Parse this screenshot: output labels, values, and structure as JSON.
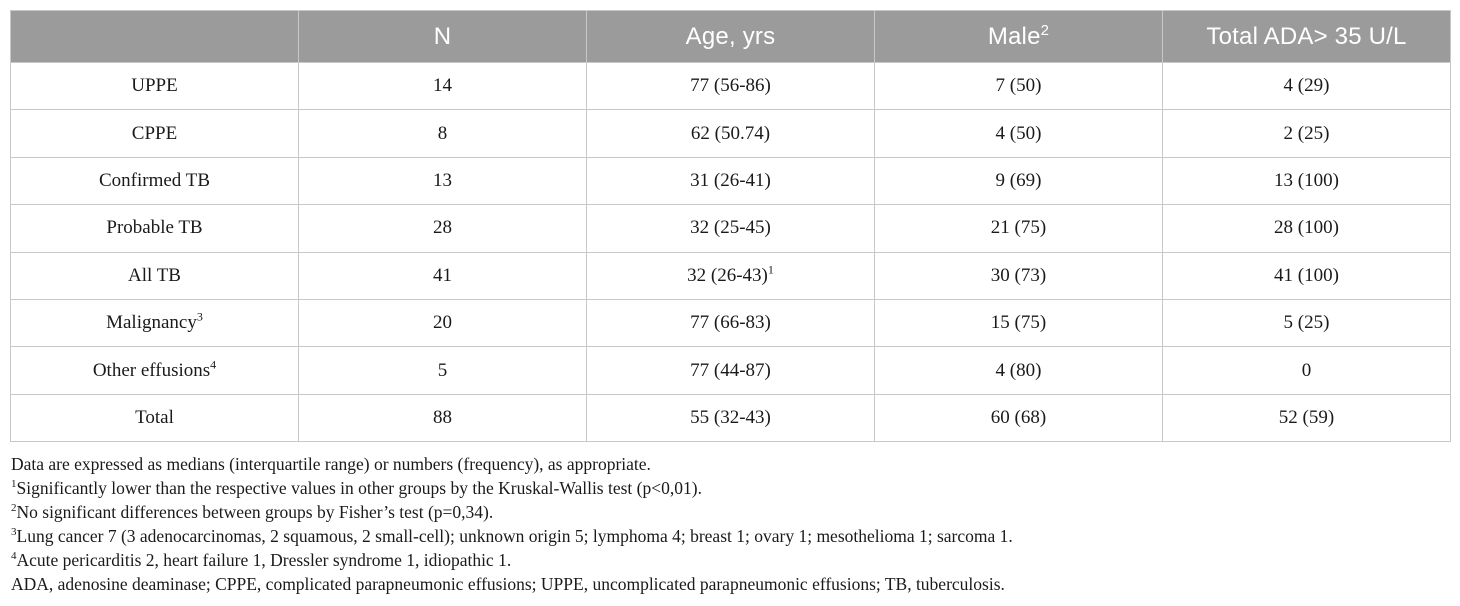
{
  "table": {
    "headers": [
      {
        "text": "",
        "sup": ""
      },
      {
        "text": "N",
        "sup": ""
      },
      {
        "text": "Age, yrs",
        "sup": ""
      },
      {
        "text": "Male",
        "sup": "2"
      },
      {
        "text": "Total ADA> 35 U/L",
        "sup": ""
      }
    ],
    "rows": [
      {
        "group": "UPPE",
        "group_sup": "",
        "n": "14",
        "age": "77 (56-86)",
        "age_sup": "",
        "male": "7 (50)",
        "ada": "4 (29)"
      },
      {
        "group": "CPPE",
        "group_sup": "",
        "n": "8",
        "age": "62 (50.74)",
        "age_sup": "",
        "male": "4 (50)",
        "ada": "2 (25)"
      },
      {
        "group": "Confirmed TB",
        "group_sup": "",
        "n": "13",
        "age": "31 (26-41)",
        "age_sup": "",
        "male": "9 (69)",
        "ada": "13 (100)"
      },
      {
        "group": "Probable TB",
        "group_sup": "",
        "n": "28",
        "age": "32 (25-45)",
        "age_sup": "",
        "male": "21 (75)",
        "ada": "28 (100)"
      },
      {
        "group": "All TB",
        "group_sup": "",
        "n": "41",
        "age": "32 (26-43)",
        "age_sup": "1",
        "male": "30 (73)",
        "ada": "41 (100)"
      },
      {
        "group": "Malignancy",
        "group_sup": "3",
        "n": "20",
        "age": "77 (66-83)",
        "age_sup": "",
        "male": "15 (75)",
        "ada": "5 (25)"
      },
      {
        "group": "Other effusions",
        "group_sup": "4",
        "n": "5",
        "age": "77 (44-87)",
        "age_sup": "",
        "male": "4 (80)",
        "ada": "0"
      },
      {
        "group": "Total",
        "group_sup": "",
        "n": "88",
        "age": "55 (32-43)",
        "age_sup": "",
        "male": "60 (68)",
        "ada": "52 (59)"
      }
    ]
  },
  "notes": [
    {
      "sup": "",
      "text": "Data are expressed as medians (interquartile range) or numbers (frequency), as appropriate."
    },
    {
      "sup": "1",
      "text": "Significantly lower than the respective values in other groups by the Kruskal-Wallis test (p<0,01)."
    },
    {
      "sup": "2",
      "text": "No significant differences between groups by Fisher’s test (p=0,34)."
    },
    {
      "sup": "3",
      "text": "Lung cancer 7 (3 adenocarcinomas, 2 squamous, 2 small-cell); unknown origin 5; lymphoma 4; breast 1; ovary 1; mesothelioma 1; sarcoma 1."
    },
    {
      "sup": "4",
      "text": "Acute pericarditis 2, heart failure 1, Dressler syndrome 1, idiopathic 1."
    },
    {
      "sup": "",
      "text": "ADA, adenosine deaminase; CPPE, complicated parapneumonic effusions; UPPE, uncomplicated parapneumonic effusions; TB, tuberculosis."
    }
  ]
}
